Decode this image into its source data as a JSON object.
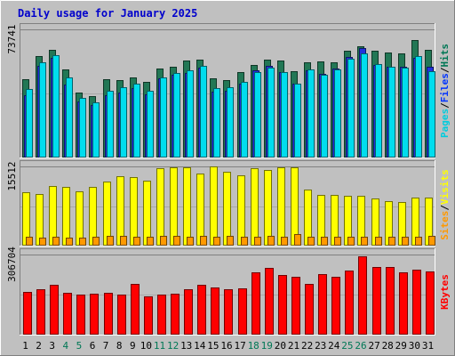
{
  "chart_data": {
    "type": "bar",
    "title": "Daily usage for January 2025",
    "days": [
      "1",
      "2",
      "3",
      "4",
      "5",
      "6",
      "7",
      "8",
      "9",
      "10",
      "11",
      "12",
      "13",
      "14",
      "15",
      "16",
      "17",
      "18",
      "19",
      "20",
      "21",
      "22",
      "23",
      "24",
      "25",
      "26",
      "27",
      "28",
      "29",
      "30",
      "31"
    ],
    "weekend_days": [
      "4",
      "5",
      "11",
      "12",
      "18",
      "19",
      "25",
      "26"
    ],
    "panels": [
      {
        "max_label": "73741",
        "ymax": 73741,
        "legend": [
          {
            "text": "Pages",
            "color": "#00ccdd"
          },
          {
            "text": "/",
            "color": "#000000"
          },
          {
            "text": "Files",
            "color": "#0033ff"
          },
          {
            "text": "/",
            "color": "#000000"
          },
          {
            "text": "Hits",
            "color": "#007755"
          }
        ],
        "series": [
          {
            "name": "Hits",
            "color": "#227755",
            "values": [
              45000,
              58500,
              62000,
              50500,
              37500,
              35500,
              45000,
              44500,
              46000,
              43500,
              51000,
              52000,
              56000,
              56500,
              45500,
              44500,
              49000,
              53500,
              56500,
              56000,
              49500,
              55000,
              55500,
              55000,
              61500,
              64000,
              61500,
              60500,
              60000,
              67500,
              62000
            ]
          },
          {
            "name": "Files",
            "color": "#2233dd",
            "values": [
              36000,
              53000,
              57500,
              42000,
              32500,
              30000,
              36000,
              37500,
              40000,
              36500,
              45500,
              47500,
              48500,
              51500,
              38000,
              38500,
              42500,
              50000,
              53000,
              49000,
              42500,
              50000,
              48000,
              51000,
              58000,
              63000,
              53500,
              52000,
              52000,
              57500,
              52000
            ]
          },
          {
            "name": "Pages",
            "color": "#00ddee",
            "values": [
              39500,
              55000,
              59000,
              46000,
              34500,
              32000,
              38500,
              40500,
              42500,
              38500,
              46000,
              48500,
              50000,
              52500,
              40000,
              40500,
              43500,
              49000,
              51500,
              49000,
              42500,
              50500,
              47500,
              50500,
              57000,
              60000,
              54000,
              52000,
              51500,
              58500,
              49500
            ]
          }
        ]
      },
      {
        "max_label": "15512",
        "ymax": 15512,
        "legend": [
          {
            "text": "Sites",
            "color": "#ff9900"
          },
          {
            "text": "/",
            "color": "#000000"
          },
          {
            "text": "Visits",
            "color": "#ffff00"
          }
        ],
        "series": [
          {
            "name": "Visits",
            "color": "#ffff00",
            "values": [
              10500,
              10100,
              11700,
              11500,
              10700,
              11500,
              12500,
              13600,
              13500,
              12800,
              15200,
              15400,
              15300,
              14100,
              15500,
              14400,
              13800,
              15200,
              14800,
              15300,
              15400,
              11000,
              10000,
              10000,
              9800,
              9800,
              9200,
              8700,
              8600,
              9400,
              9400
            ]
          },
          {
            "name": "Sites",
            "color": "#ff9900",
            "values": [
              1700,
              1600,
              1800,
              1600,
              1600,
              1700,
              1900,
              1900,
              1700,
              1800,
              1900,
              1900,
              1800,
              1900,
              1700,
              2000,
              1800,
              1800,
              1900,
              1800,
              2200,
              1700,
              1800,
              1700,
              1700,
              1700,
              1700,
              1700,
              1700,
              1800,
              2000
            ]
          }
        ]
      },
      {
        "max_label": "306704",
        "ymax": 306704,
        "legend": [
          {
            "text": "KBytes",
            "color": "#ff0000"
          }
        ],
        "series": [
          {
            "name": "KBytes",
            "color": "#ff0000",
            "values": [
              165000,
              173000,
              190000,
              161000,
              155000,
              158000,
              160000,
              155000,
              195000,
              148000,
              154000,
              158000,
              175000,
              190000,
              179000,
              175000,
              178000,
              238000,
              257000,
              229000,
              223000,
              195000,
              232000,
              222000,
              247000,
              300000,
              259000,
              258000,
              240000,
              249000,
              242000
            ]
          }
        ]
      }
    ]
  }
}
